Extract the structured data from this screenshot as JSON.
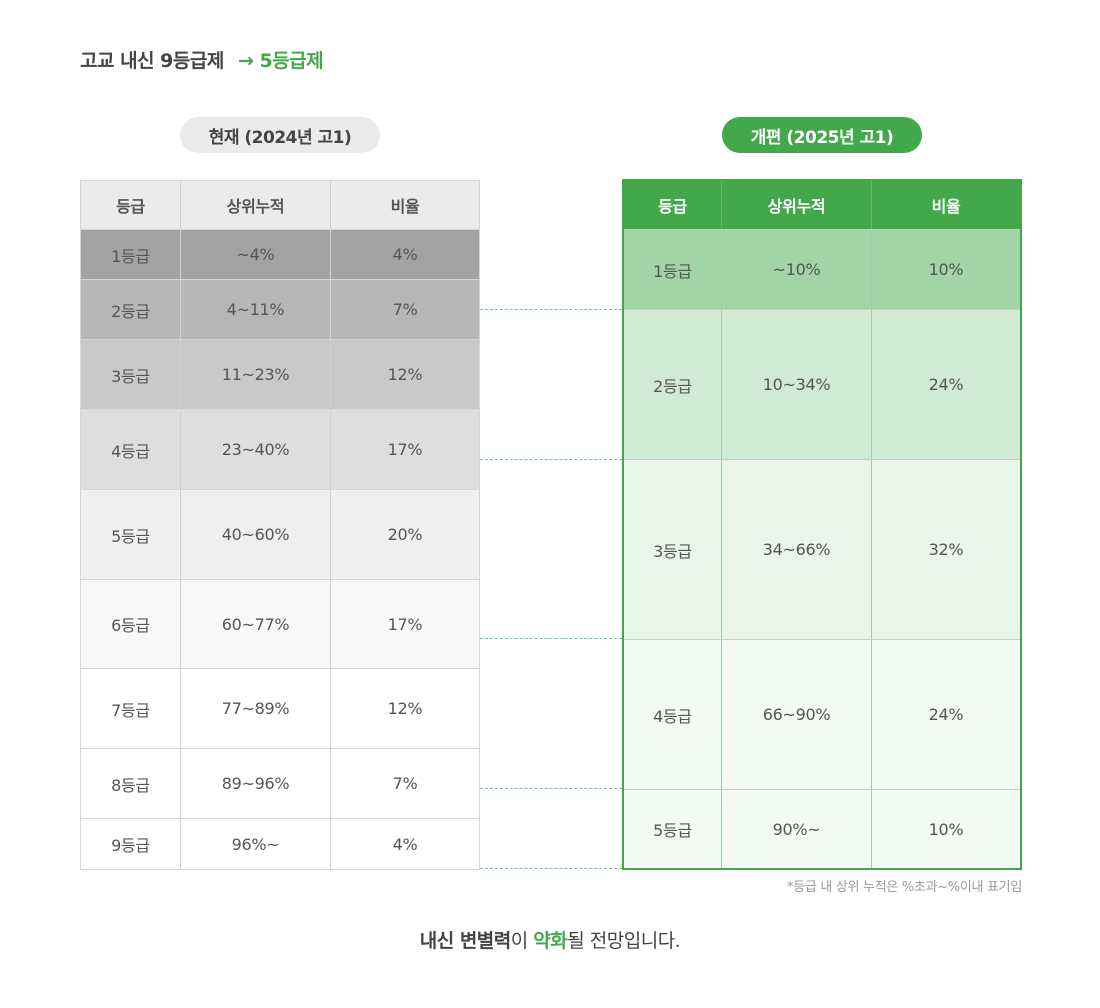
{
  "title": {
    "main": "고교 내신 9등급제",
    "arrow": "→",
    "accent": "5등급제"
  },
  "left_table": {
    "label": "현재 (2024년 고1)",
    "headers": [
      "등급",
      "상위누적",
      "비율"
    ],
    "rows": [
      {
        "grade": "1등급",
        "range": "~4%",
        "ratio": "4%",
        "bg": "#a3a3a3"
      },
      {
        "grade": "2등급",
        "range": "4~11%",
        "ratio": "7%",
        "bg": "#b6b6b6"
      },
      {
        "grade": "3등급",
        "range": "11~23%",
        "ratio": "12%",
        "bg": "#c9c9c9"
      },
      {
        "grade": "4등급",
        "range": "23~40%",
        "ratio": "17%",
        "bg": "#dedede"
      },
      {
        "grade": "5등급",
        "range": "40~60%",
        "ratio": "20%",
        "bg": "#efefef"
      },
      {
        "grade": "6등급",
        "range": "60~77%",
        "ratio": "17%",
        "bg": "#f8f8f8"
      },
      {
        "grade": "7등급",
        "range": "77~89%",
        "ratio": "12%",
        "bg": "#ffffff"
      },
      {
        "grade": "8등급",
        "range": "89~96%",
        "ratio": "7%",
        "bg": "#ffffff"
      },
      {
        "grade": "9등급",
        "range": "96%~",
        "ratio": "4%",
        "bg": "#ffffff"
      }
    ]
  },
  "right_table": {
    "label": "개편 (2025년 고1)",
    "headers": [
      "등급",
      "상위누적",
      "비율"
    ],
    "rows": [
      {
        "grade": "1등급",
        "range": "~10%",
        "ratio": "10%",
        "bg": "#a2d4a6"
      },
      {
        "grade": "2등급",
        "range": "10~34%",
        "ratio": "24%",
        "bg": "#d1ead3"
      },
      {
        "grade": "3등급",
        "range": "34~66%",
        "ratio": "32%",
        "bg": "#e9f5ea"
      },
      {
        "grade": "4등급",
        "range": "66~90%",
        "ratio": "24%",
        "bg": "#f3f9f3"
      },
      {
        "grade": "5등급",
        "range": "90%~",
        "ratio": "10%",
        "bg": "#f3f9f3"
      }
    ]
  },
  "footnote": "*등급 내 상위 누적은 %초과~%이내 표기임",
  "conclusion": {
    "part1": "내신 변별력",
    "part2": "이 ",
    "part3": "약화",
    "part4": "될 전망입니다."
  },
  "colors": {
    "accent": "#43a84b",
    "pill_gray": "#ebebeb"
  }
}
